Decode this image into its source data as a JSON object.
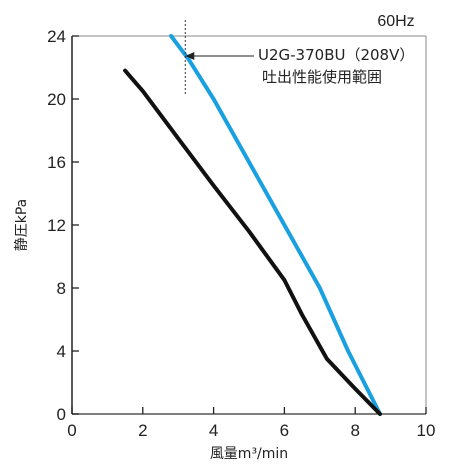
{
  "chart_data": {
    "type": "line",
    "title": "60Hz",
    "xlabel": "風量m³/min",
    "ylabel": "静圧kPa",
    "xlim": [
      0,
      10
    ],
    "ylim": [
      0,
      24
    ],
    "x_ticks": [
      "0",
      "2",
      "4",
      "6",
      "8",
      "10"
    ],
    "y_ticks": [
      "0",
      "4",
      "8",
      "12",
      "16",
      "20",
      "24"
    ],
    "grid": false,
    "annotation": {
      "line1": "U2G-370BU（208V）",
      "line2": "吐出性能使用範囲",
      "points_to_series": 0
    },
    "dashed_marker_x": 3.2,
    "series": [
      {
        "color": "#1aa0e0",
        "points": [
          [
            2.8,
            24
          ],
          [
            3.3,
            22.5
          ],
          [
            4.0,
            20
          ],
          [
            5.0,
            16
          ],
          [
            6.0,
            12
          ],
          [
            7.0,
            8
          ],
          [
            7.8,
            4
          ],
          [
            8.7,
            0
          ]
        ]
      },
      {
        "color": "#111111",
        "points": [
          [
            1.5,
            21.8
          ],
          [
            2.0,
            20.5
          ],
          [
            3.0,
            17.5
          ],
          [
            4.0,
            14.5
          ],
          [
            5.0,
            11.6
          ],
          [
            6.0,
            8.5
          ],
          [
            6.5,
            6.3
          ],
          [
            7.2,
            3.5
          ],
          [
            8.0,
            1.6
          ],
          [
            8.7,
            0
          ]
        ]
      }
    ],
    "colors": {
      "axis": "#222222",
      "text": "#222222",
      "frame": "#555555"
    }
  }
}
